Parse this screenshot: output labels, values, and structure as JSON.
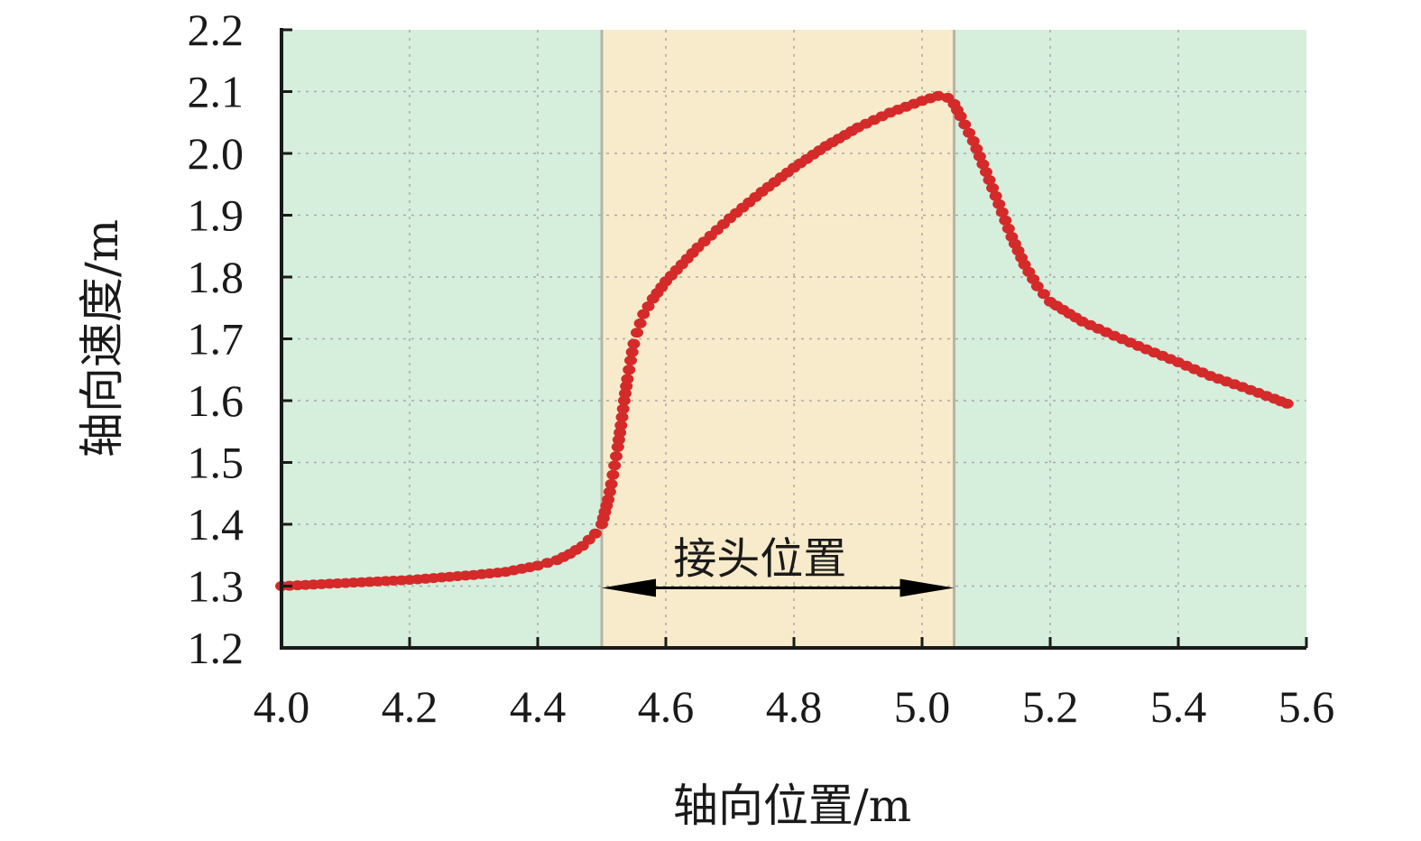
{
  "chart_data": {
    "type": "scatter",
    "xlabel": "轴向位置/m",
    "ylabel": "轴向速度/m",
    "xlim": [
      4.0,
      5.6
    ],
    "ylim": [
      1.2,
      2.2
    ],
    "x_ticks": [
      "4.0",
      "4.2",
      "4.4",
      "4.6",
      "4.8",
      "5.0",
      "5.2",
      "5.4",
      "5.6"
    ],
    "y_ticks": [
      "1.2",
      "1.3",
      "1.4",
      "1.5",
      "1.6",
      "1.7",
      "1.8",
      "1.9",
      "2.0",
      "2.1",
      "2.2"
    ],
    "grid": true,
    "regions": [
      {
        "x": [
          4.0,
          4.5
        ],
        "color": "#d6eedc"
      },
      {
        "x": [
          4.5,
          5.05
        ],
        "color": "#f8ebcb"
      },
      {
        "x": [
          5.05,
          5.6
        ],
        "color": "#d6eedc"
      }
    ],
    "annotation": {
      "text": "接头位置",
      "x_start": 4.5,
      "x_end": 5.05,
      "y": 1.3
    },
    "series": [
      {
        "color": "#d42a2a",
        "points": [
          [
            4.0,
            1.3
          ],
          [
            4.1,
            1.305
          ],
          [
            4.2,
            1.31
          ],
          [
            4.3,
            1.318
          ],
          [
            4.35,
            1.323
          ],
          [
            4.4,
            1.333
          ],
          [
            4.43,
            1.342
          ],
          [
            4.45,
            1.352
          ],
          [
            4.47,
            1.365
          ],
          [
            4.48,
            1.375
          ],
          [
            4.49,
            1.385
          ],
          [
            4.5,
            1.4
          ],
          [
            4.505,
            1.42
          ],
          [
            4.51,
            1.44
          ],
          [
            4.515,
            1.465
          ],
          [
            4.52,
            1.495
          ],
          [
            4.525,
            1.525
          ],
          [
            4.53,
            1.56
          ],
          [
            4.535,
            1.6
          ],
          [
            4.54,
            1.635
          ],
          [
            4.545,
            1.665
          ],
          [
            4.55,
            1.692
          ],
          [
            4.555,
            1.71
          ],
          [
            4.565,
            1.74
          ],
          [
            4.58,
            1.765
          ],
          [
            4.6,
            1.793
          ],
          [
            4.65,
            1.848
          ],
          [
            4.7,
            1.895
          ],
          [
            4.75,
            1.938
          ],
          [
            4.8,
            1.977
          ],
          [
            4.85,
            2.012
          ],
          [
            4.9,
            2.042
          ],
          [
            4.95,
            2.066
          ],
          [
            5.0,
            2.085
          ],
          [
            5.025,
            2.093
          ],
          [
            5.04,
            2.09
          ],
          [
            5.05,
            2.08
          ],
          [
            5.06,
            2.06
          ],
          [
            5.08,
            2.02
          ],
          [
            5.1,
            1.97
          ],
          [
            5.12,
            1.918
          ],
          [
            5.14,
            1.865
          ],
          [
            5.16,
            1.82
          ],
          [
            5.18,
            1.785
          ],
          [
            5.2,
            1.76
          ],
          [
            5.25,
            1.728
          ],
          [
            5.3,
            1.705
          ],
          [
            5.35,
            1.683
          ],
          [
            5.4,
            1.662
          ],
          [
            5.45,
            1.64
          ],
          [
            5.5,
            1.622
          ],
          [
            5.55,
            1.603
          ],
          [
            5.57,
            1.595
          ]
        ]
      }
    ]
  }
}
